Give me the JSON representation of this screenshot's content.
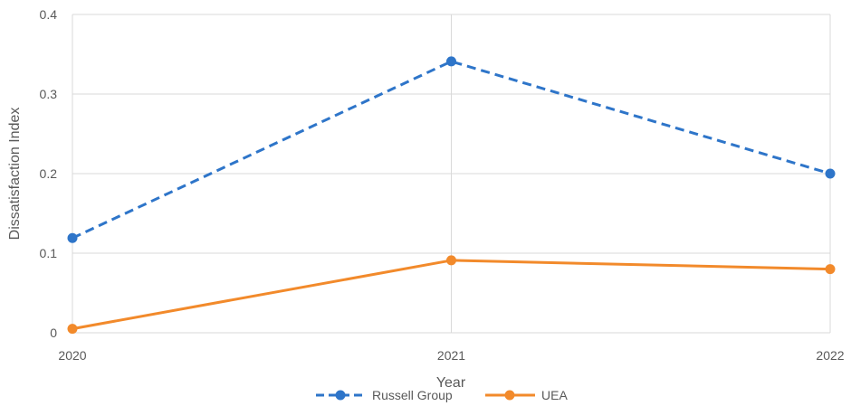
{
  "chart_data": {
    "type": "line",
    "x": [
      "2020",
      "2021",
      "2022"
    ],
    "series": [
      {
        "name": "Russell Group",
        "values": [
          0.119,
          0.341,
          0.2
        ],
        "color": "#2e75c9",
        "dashed": true
      },
      {
        "name": "UEA",
        "values": [
          0.005,
          0.091,
          0.08
        ],
        "color": "#f28a2b",
        "dashed": false
      }
    ],
    "xlabel": "Year",
    "ylabel": "Dissatisfaction Index",
    "ylim": [
      0,
      0.4
    ],
    "yticks": [
      "0",
      "0.1",
      "0.2",
      "0.3",
      "0.4"
    ],
    "grid": true,
    "legend_position": "bottom",
    "gridline_color": "#d9d9d9"
  }
}
